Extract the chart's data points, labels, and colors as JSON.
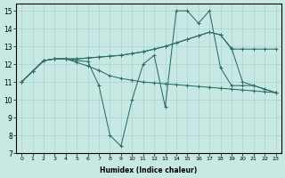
{
  "xlabel": "Humidex (Indice chaleur)",
  "bg_color": "#c8e8e4",
  "grid_color": "#a8d4d0",
  "line_color": "#2a6e64",
  "xlim": [
    -0.5,
    23.5
  ],
  "ylim": [
    7,
    15.4
  ],
  "xticks": [
    0,
    1,
    2,
    3,
    4,
    5,
    6,
    7,
    8,
    9,
    10,
    11,
    12,
    13,
    14,
    15,
    16,
    17,
    18,
    19,
    20,
    21,
    22,
    23
  ],
  "yticks": [
    7,
    8,
    9,
    10,
    11,
    12,
    13,
    14,
    15
  ],
  "lines": [
    {
      "x": [
        0,
        1,
        2,
        3,
        4,
        5,
        6,
        7,
        8,
        9,
        10,
        11,
        12,
        13,
        14,
        15,
        16,
        17,
        18,
        19,
        20,
        21,
        22,
        23
      ],
      "y": [
        11,
        11.6,
        12.2,
        12.3,
        12.3,
        12.1,
        11.9,
        11.65,
        11.35,
        11.2,
        11.1,
        11.0,
        10.95,
        10.9,
        10.85,
        10.8,
        10.75,
        10.7,
        10.65,
        10.6,
        10.55,
        10.5,
        10.45,
        10.4
      ]
    },
    {
      "x": [
        0,
        1,
        2,
        3,
        4,
        5,
        6,
        7,
        8,
        9,
        10,
        11,
        12,
        13,
        14,
        15,
        16,
        17,
        18,
        19,
        20,
        21,
        22,
        23
      ],
      "y": [
        11,
        11.6,
        12.2,
        12.3,
        12.3,
        12.2,
        12.15,
        10.8,
        8.0,
        7.4,
        10.0,
        12.0,
        12.5,
        9.6,
        15.0,
        15.0,
        14.3,
        15.0,
        11.8,
        10.8,
        10.8,
        10.8,
        10.6,
        10.4
      ]
    },
    {
      "x": [
        0,
        1,
        2,
        3,
        4,
        5,
        6,
        7,
        8,
        9,
        10,
        11,
        12,
        13,
        14,
        15,
        16,
        17,
        18,
        19,
        20,
        21,
        22,
        23
      ],
      "y": [
        11,
        11.6,
        12.2,
        12.3,
        12.3,
        12.3,
        12.35,
        12.4,
        12.45,
        12.5,
        12.6,
        12.7,
        12.85,
        13.0,
        13.2,
        13.4,
        13.6,
        13.8,
        13.65,
        12.85,
        12.85,
        12.85,
        12.85,
        12.85
      ]
    },
    {
      "x": [
        0,
        1,
        2,
        3,
        4,
        5,
        6,
        7,
        8,
        9,
        10,
        11,
        12,
        13,
        14,
        15,
        16,
        17,
        18,
        19,
        20,
        21,
        22,
        23
      ],
      "y": [
        11,
        11.6,
        12.2,
        12.3,
        12.3,
        12.3,
        12.35,
        12.4,
        12.45,
        12.5,
        12.6,
        12.7,
        12.85,
        13.0,
        13.2,
        13.4,
        13.6,
        13.8,
        13.65,
        12.9,
        11.0,
        10.8,
        10.6,
        10.4
      ]
    }
  ]
}
